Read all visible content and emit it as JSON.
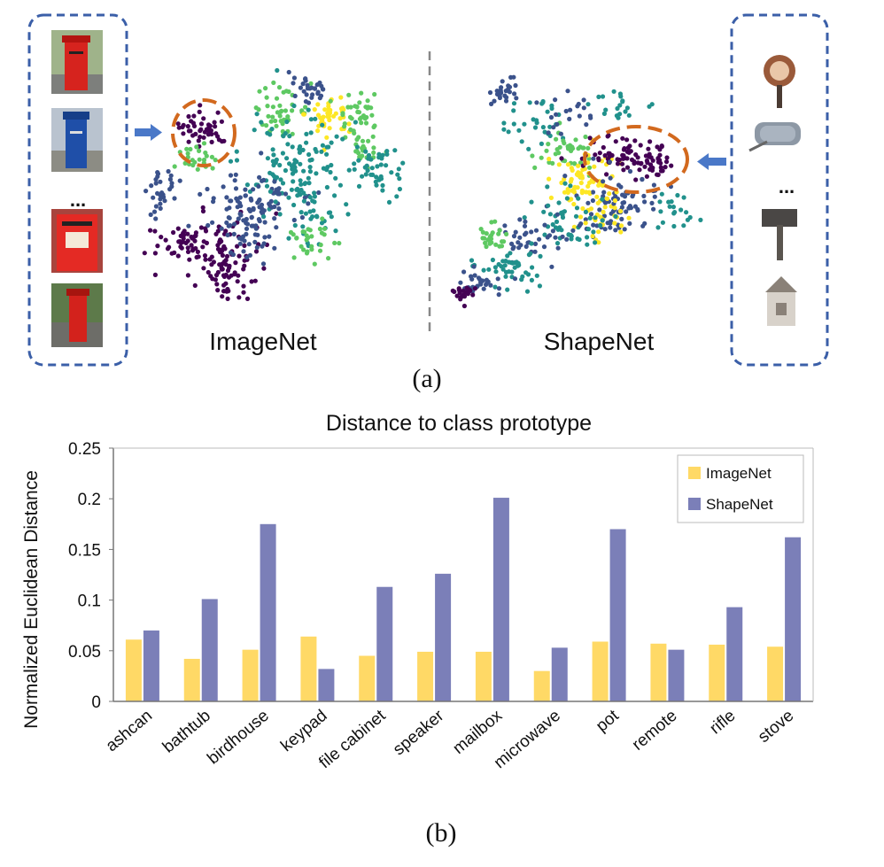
{
  "panel_a": {
    "left_label": "ImageNet",
    "right_label": "ShapeNet",
    "caption": "(a)",
    "ellipsis": "...",
    "colors": {
      "frame": "#3b5fa8",
      "highlight": "#d2691e",
      "arrow": "#4a78c8",
      "divider": "#888888",
      "palette": [
        "#440154",
        "#3b528b",
        "#21918c",
        "#5ec962",
        "#fde725"
      ]
    },
    "left_thumbnails": [
      "red-pillar-postbox",
      "blue-pillar-postbox",
      "red-pillar-postbox",
      "red-pillar-postbox"
    ],
    "right_thumbnails": [
      "round-mailbox",
      "grey-mailbox",
      "post-mailbox",
      "house-mailbox"
    ]
  },
  "panel_b_caption": "(b)",
  "chart_data": {
    "type": "bar",
    "title": "Distance to class prototype",
    "xlabel": "",
    "ylabel": "Normalized Euclidean Distance",
    "ylim": [
      0,
      0.25
    ],
    "yticks": [
      "0",
      "0.05",
      "0.1",
      "0.15",
      "0.2",
      "0.25"
    ],
    "ytick_values": [
      0,
      0.05,
      0.1,
      0.15,
      0.2,
      0.25
    ],
    "grid": false,
    "legend_position": "top-right",
    "categories": [
      "ashcan",
      "bathtub",
      "birdhouse",
      "keypad",
      "file cabinet",
      "speaker",
      "mailbox",
      "microwave",
      "pot",
      "remote",
      "rifle",
      "stove"
    ],
    "series": [
      {
        "name": "ImageNet",
        "color": "#ffd966",
        "values": [
          0.061,
          0.042,
          0.051,
          0.064,
          0.045,
          0.049,
          0.049,
          0.03,
          0.059,
          0.057,
          0.056,
          0.054
        ]
      },
      {
        "name": "ShapeNet",
        "color": "#7b7fb8",
        "values": [
          0.07,
          0.101,
          0.175,
          0.032,
          0.113,
          0.126,
          0.201,
          0.053,
          0.17,
          0.051,
          0.093,
          0.162
        ]
      }
    ]
  }
}
